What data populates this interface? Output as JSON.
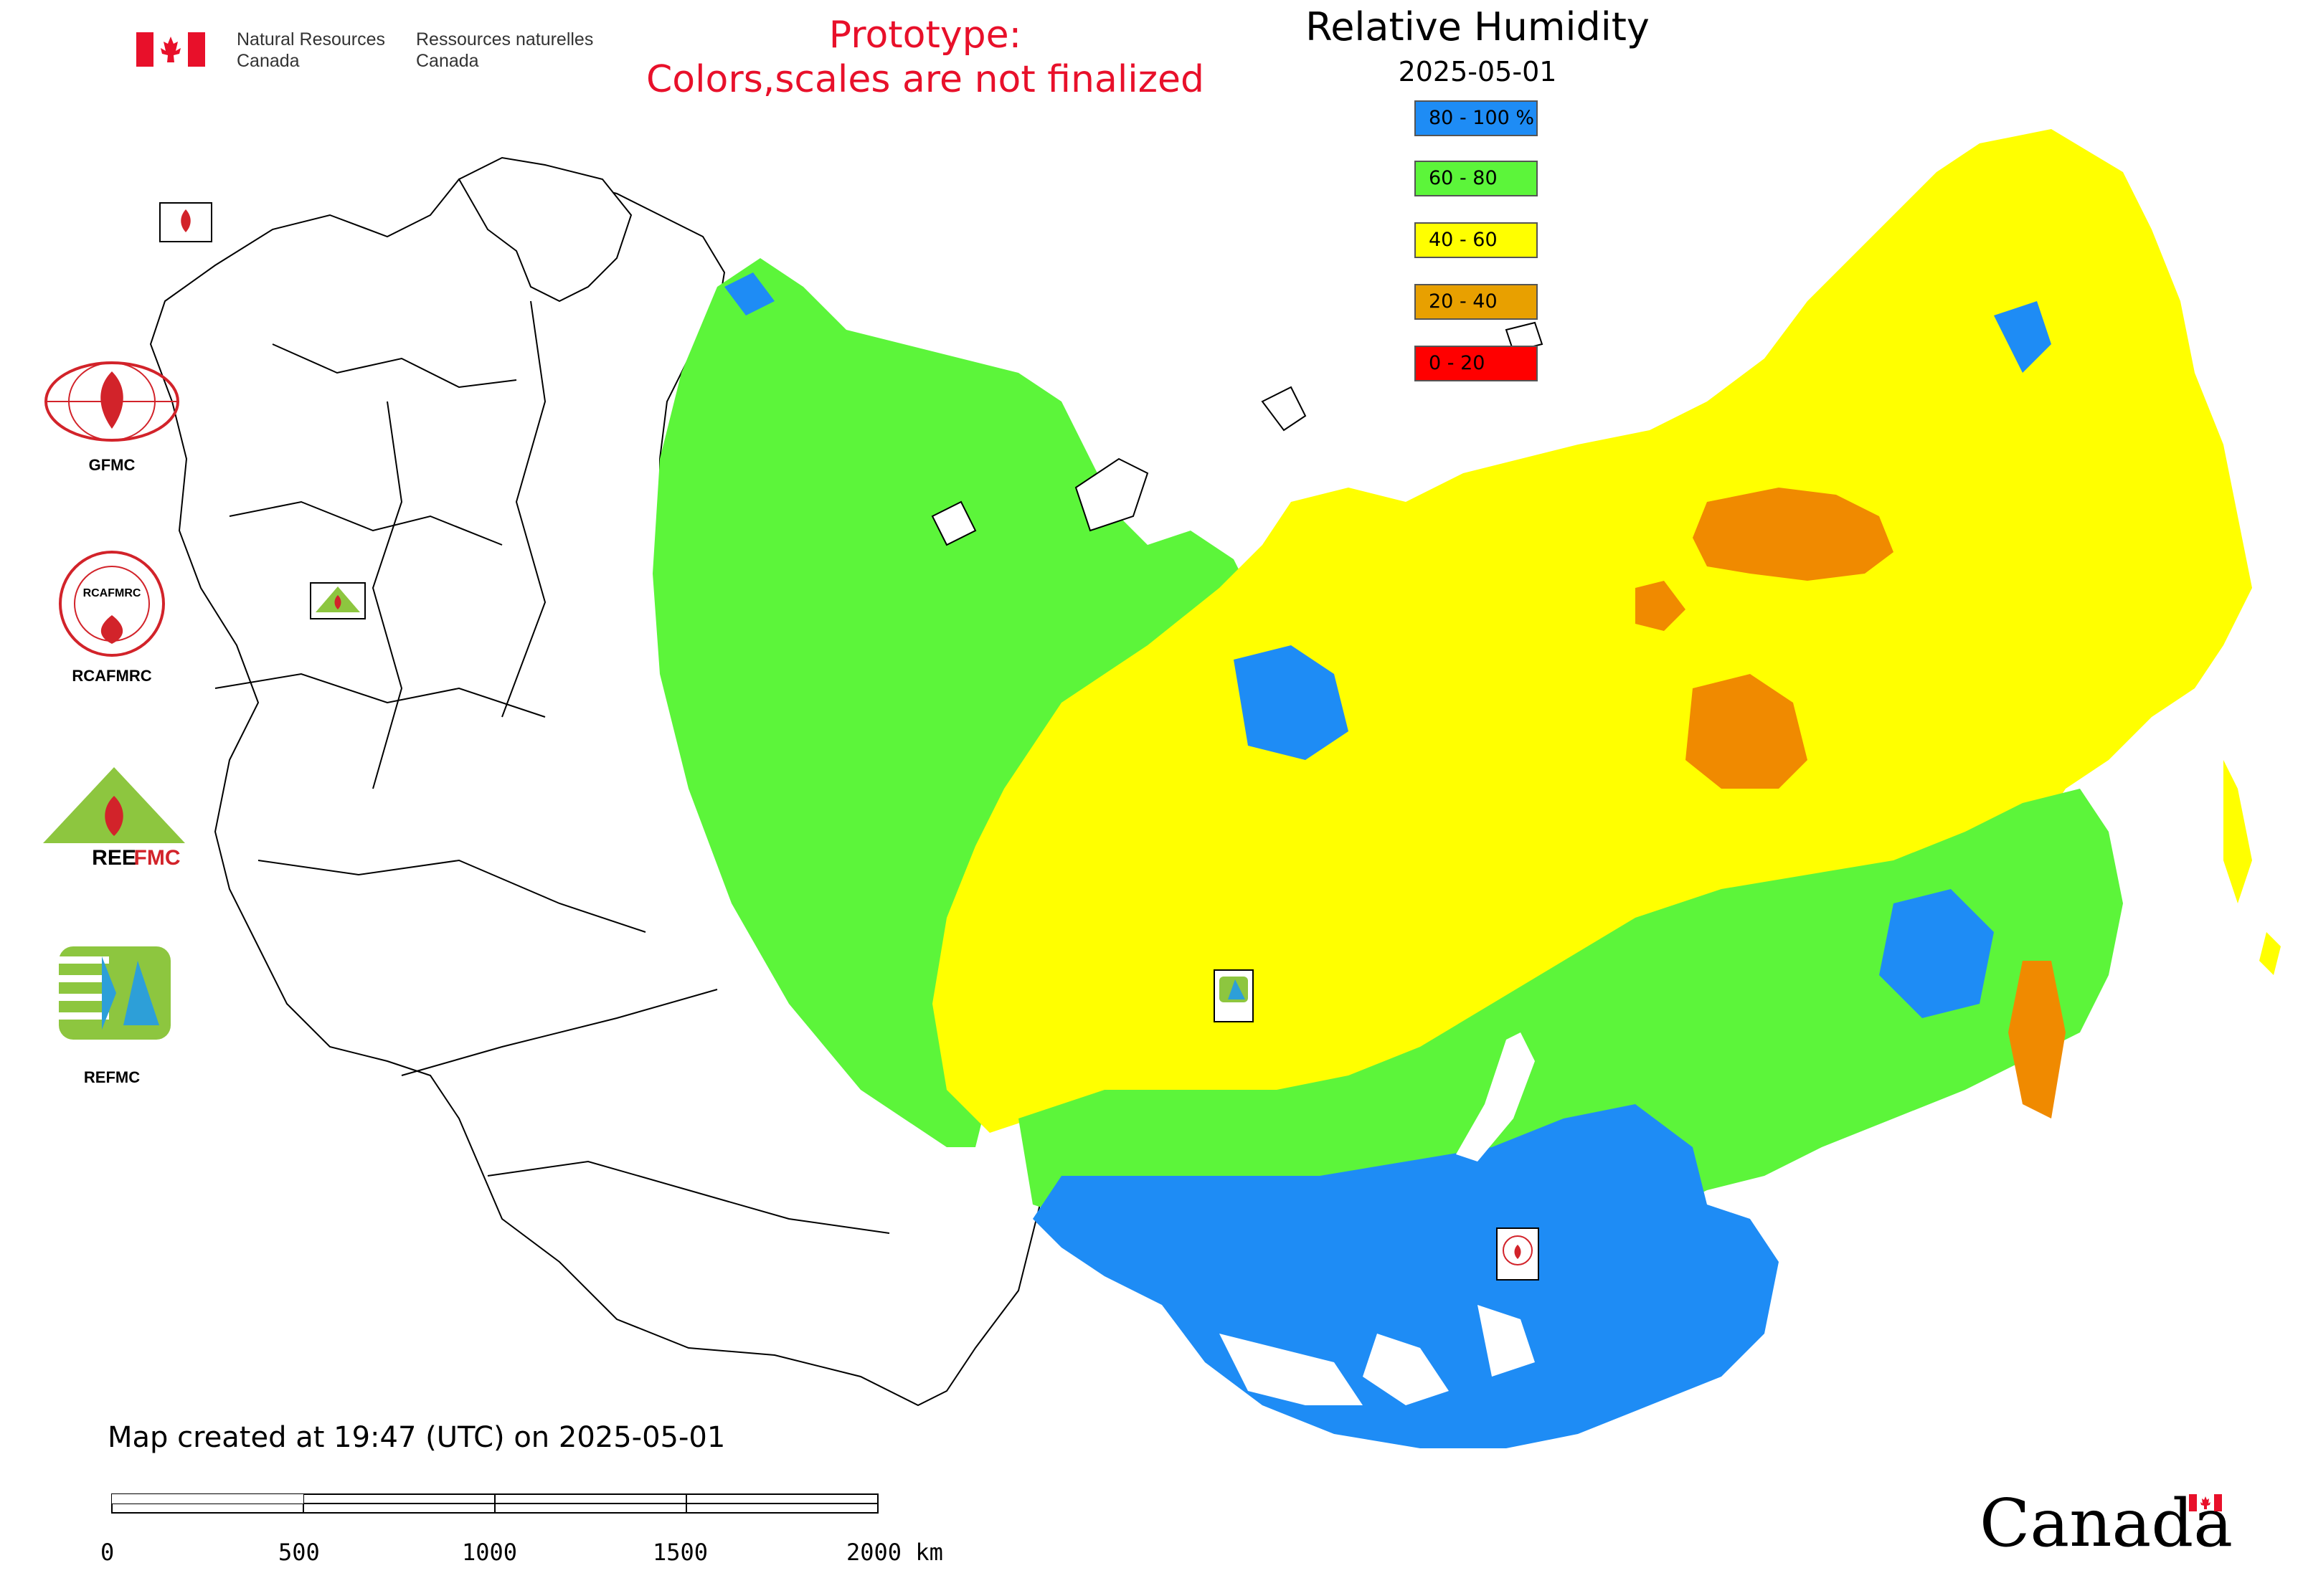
{
  "agency": {
    "name_en_line1": "Natural Resources",
    "name_en_line2": "Canada",
    "name_fr_line1": "Ressources naturelles",
    "name_fr_line2": "Canada"
  },
  "notice": {
    "line1": "Prototype:",
    "line2": "Colors,scales are not finalized",
    "color": "#e8102a"
  },
  "map_title": "Relative Humidity",
  "map_date": "2025-05-01",
  "legend": [
    {
      "label": "80 - 100 %",
      "color": "#1e8cf5"
    },
    {
      "label": "60 - 80",
      "color": "#5cf53a"
    },
    {
      "label": "40 - 60",
      "color": "#ffff00"
    },
    {
      "label": "20 - 40",
      "color": "#e8a000"
    },
    {
      "label": "0 - 20",
      "color": "#ff0000"
    }
  ],
  "side_logos": [
    {
      "caption": "GFMC",
      "icon": "gfmc-logo"
    },
    {
      "caption": "RCAFMRC",
      "icon": "rcafmrc-logo"
    },
    {
      "caption": "",
      "icon": "reefmc-logo"
    },
    {
      "caption": "REFMC",
      "icon": "refmc-logo"
    }
  ],
  "map_markers": [
    {
      "label": "GFMC",
      "icon": "gfmc-marker"
    },
    {
      "label": "REEFMC",
      "icon": "reefmc-marker"
    },
    {
      "label": "REFMC",
      "icon": "refmc-marker"
    },
    {
      "label": "RCAFMRC",
      "icon": "rcafmrc-marker"
    }
  ],
  "footer": {
    "created": "Map created at 19:47 (UTC) on 2025-05-01",
    "scale_ticks": [
      "0",
      "500",
      "1000",
      "1500",
      "2000 km"
    ]
  },
  "wordmark": "Canada"
}
